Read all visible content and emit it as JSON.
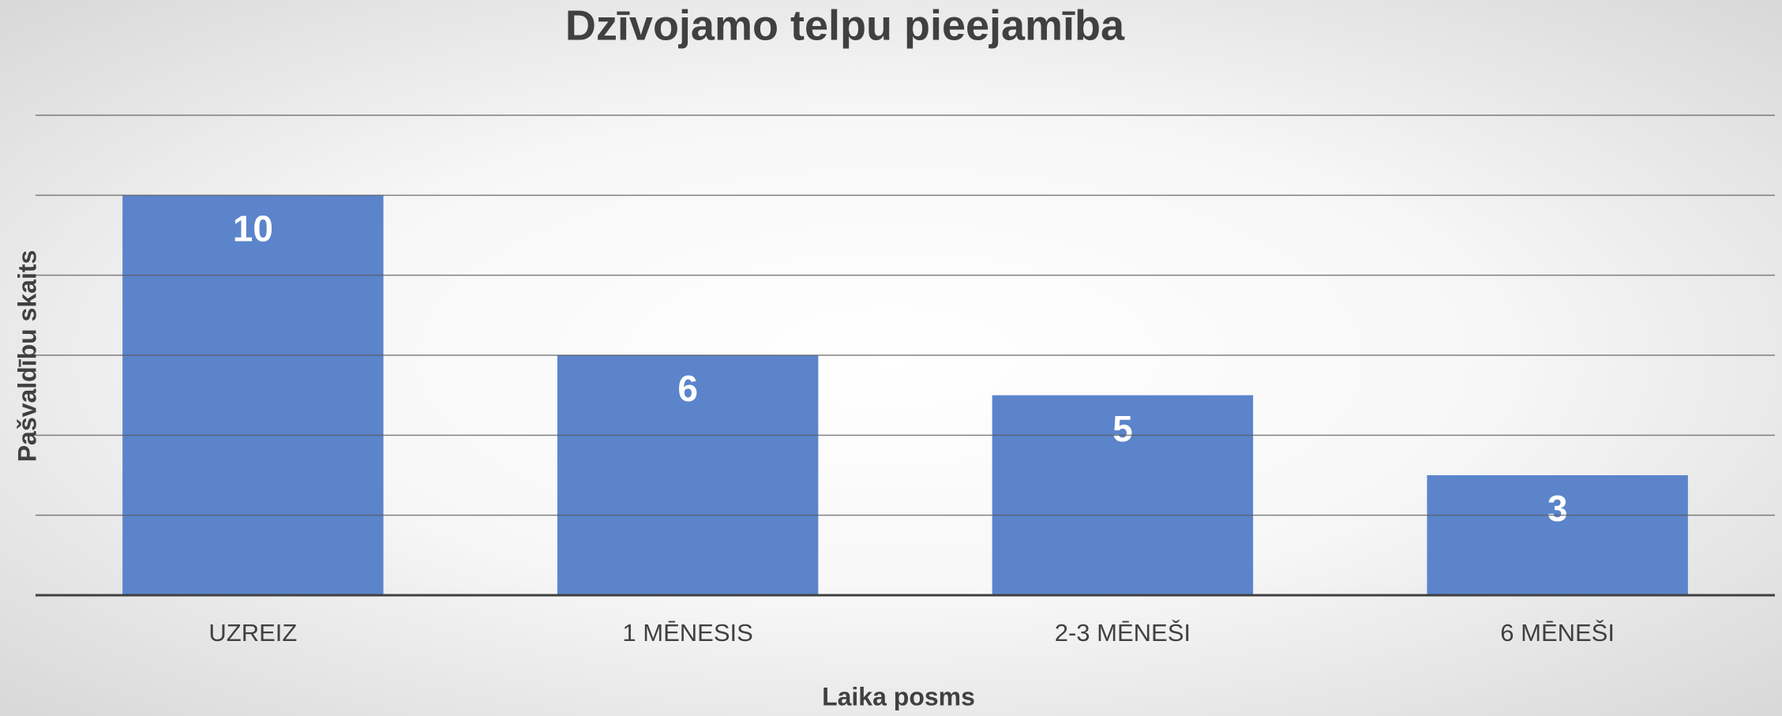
{
  "chart_data": {
    "type": "bar",
    "title": "Dzīvojamo telpu pieejamība",
    "xlabel": "Laika posms",
    "ylabel": "Pašvaldību skaits",
    "categories": [
      "UZREIZ",
      "1 MĒNESIS",
      "2-3 MĒNEŠI",
      "6 MĒNEŠI"
    ],
    "values": [
      10,
      6,
      5,
      3
    ],
    "color": "#5b84cb",
    "ylim": [
      0,
      12
    ],
    "yticks": [
      0,
      2,
      4,
      6,
      8,
      10,
      12
    ],
    "grid": true
  }
}
